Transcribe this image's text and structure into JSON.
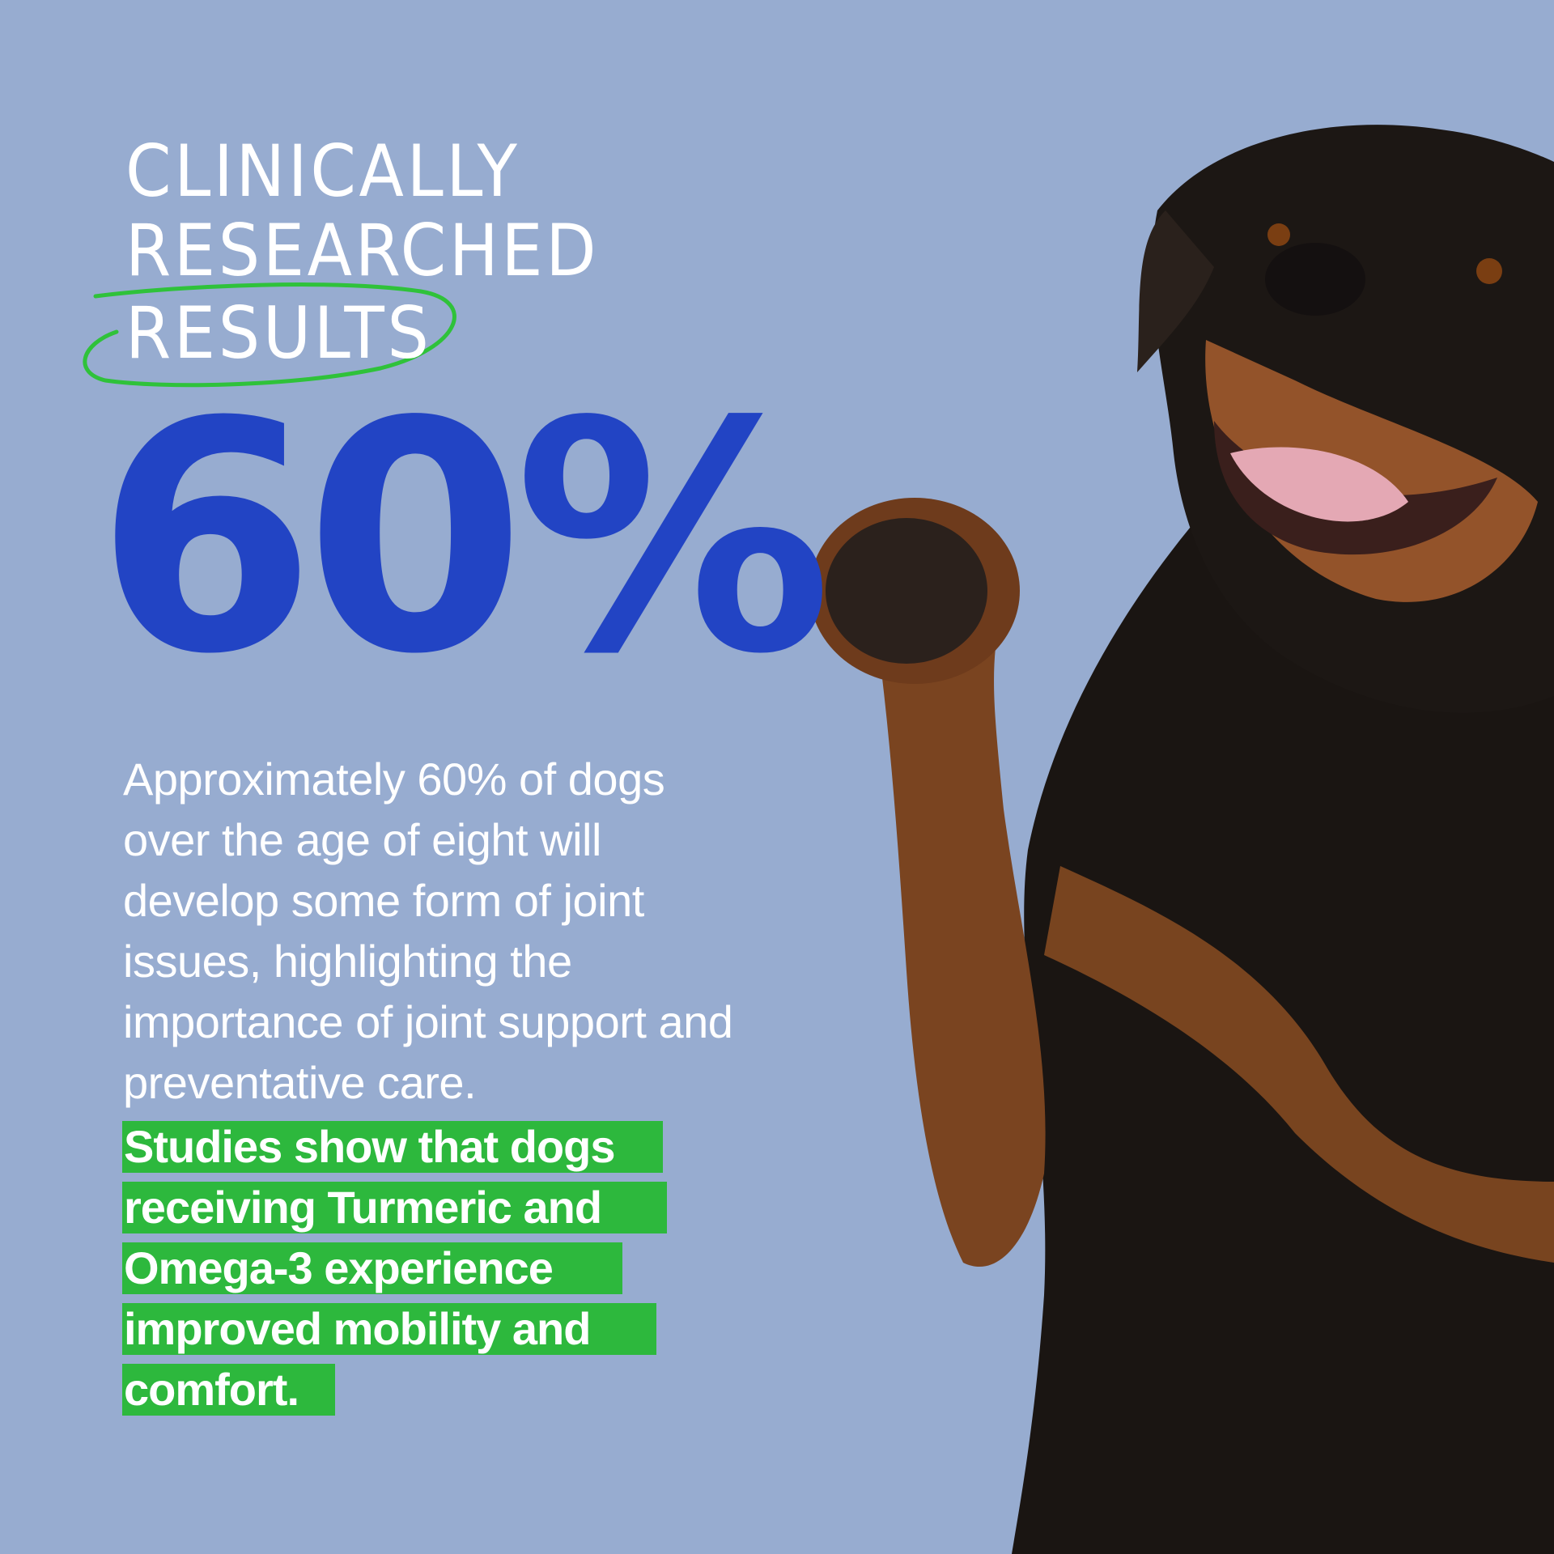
{
  "headline": {
    "line1": "CLINICALLY",
    "line2": "RESEARCHED",
    "line3": "RESULTS"
  },
  "stat": "60%",
  "body_text": "Approximately 60% of dogs over the age of eight will develop some form of joint issues, highlighting the importance of joint support and preventative care.",
  "highlight_lines": [
    "Studies show that dogs",
    "receiving Turmeric and",
    "Omega-3 experience",
    "improved mobility and",
    "comfort."
  ],
  "colors": {
    "background": "#97acd0",
    "stat": "#2244c4",
    "highlight": "#2db83d",
    "text": "#ffffff"
  },
  "image": "rottweiler-raising-paw"
}
